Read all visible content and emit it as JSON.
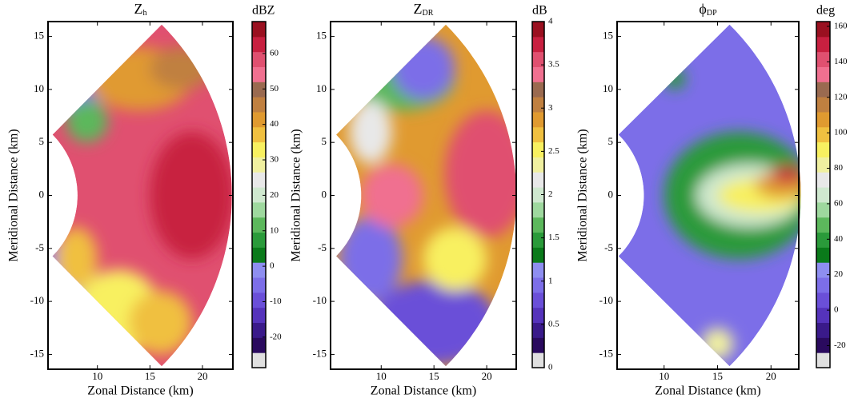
{
  "chart_data": [
    {
      "type": "heatmap",
      "title": {
        "base": "Z",
        "sub": "h"
      },
      "unit": "dBZ",
      "xlabel": "Zonal Distance (km)",
      "ylabel": "Meridional Distance (km)",
      "xlim": [
        5.3,
        22.9
      ],
      "ylim": [
        -16.4,
        16.4
      ],
      "xticks": [
        10,
        15,
        20
      ],
      "yticks": [
        -15,
        -10,
        -5,
        0,
        5,
        10,
        15
      ],
      "clim": [
        -28.6,
        69
      ],
      "cticks": [
        -20,
        -10,
        0,
        10,
        20,
        30,
        40,
        50,
        60
      ]
    },
    {
      "type": "heatmap",
      "title": {
        "base": "Z",
        "sub": "DR"
      },
      "unit": "dB",
      "xlabel": "Zonal Distance (km)",
      "ylabel": "Meridional Distance (km)",
      "xlim": [
        5.2,
        22.8
      ],
      "ylim": [
        -16.4,
        16.4
      ],
      "xticks": [
        10,
        15,
        20
      ],
      "yticks": [
        -15,
        -10,
        -5,
        0,
        5,
        10,
        15
      ],
      "clim": [
        0,
        4
      ],
      "cticks": [
        0,
        0.5,
        1,
        1.5,
        2,
        2.5,
        3,
        3.5,
        4
      ]
    },
    {
      "type": "heatmap",
      "title": {
        "base": "ϕ",
        "sub": "DP"
      },
      "unit": "deg",
      "xlabel": "Zonal Distance (km)",
      "ylabel": "Meridional Distance (km)",
      "xlim": [
        5.6,
        22.6
      ],
      "ylim": [
        -16.4,
        16.4
      ],
      "xticks": [
        10,
        15,
        20
      ],
      "yticks": [
        -15,
        -10,
        -5,
        0,
        5,
        10,
        15
      ],
      "clim": [
        -32.4,
        162.7
      ],
      "cticks": [
        -20,
        0,
        20,
        40,
        60,
        80,
        100,
        120,
        140,
        160
      ]
    }
  ],
  "colormap": [
    "#e0e0e0",
    "#2a0a5e",
    "#3a1a8a",
    "#5533bb",
    "#6a4fd8",
    "#7c6ee8",
    "#8e8ef0",
    "#0a7a1a",
    "#2a9a3a",
    "#5cb85c",
    "#9ed89e",
    "#cfe8cf",
    "#e8e8e8",
    "#f0f0a0",
    "#f8f060",
    "#f0c040",
    "#e09a30",
    "#c08040",
    "#9a6a50",
    "#f07090",
    "#e05070",
    "#c82040",
    "#9a1020"
  ]
}
